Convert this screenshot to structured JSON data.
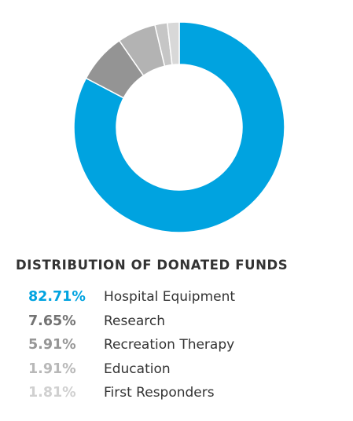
{
  "chart_data": {
    "type": "pie",
    "title": "DISTRIBUTION OF DONATED FUNDS",
    "categories": [
      "Hospital Equipment",
      "Research",
      "Recreation Therapy",
      "Education",
      "First Responders"
    ],
    "values": [
      82.71,
      7.65,
      5.91,
      1.91,
      1.81
    ],
    "value_labels": [
      "82.71%",
      "7.65%",
      "5.91%",
      "1.91%",
      "1.81%"
    ],
    "colors": [
      "#00a3e0",
      "#949494",
      "#b3b3b3",
      "#c6c6c6",
      "#d8d8d8"
    ],
    "legend_colors": [
      "#00a3e0",
      "#737373",
      "#969696",
      "#b8b8b8",
      "#d0d0d0"
    ],
    "legend_position": "bottom",
    "style": "donut"
  }
}
